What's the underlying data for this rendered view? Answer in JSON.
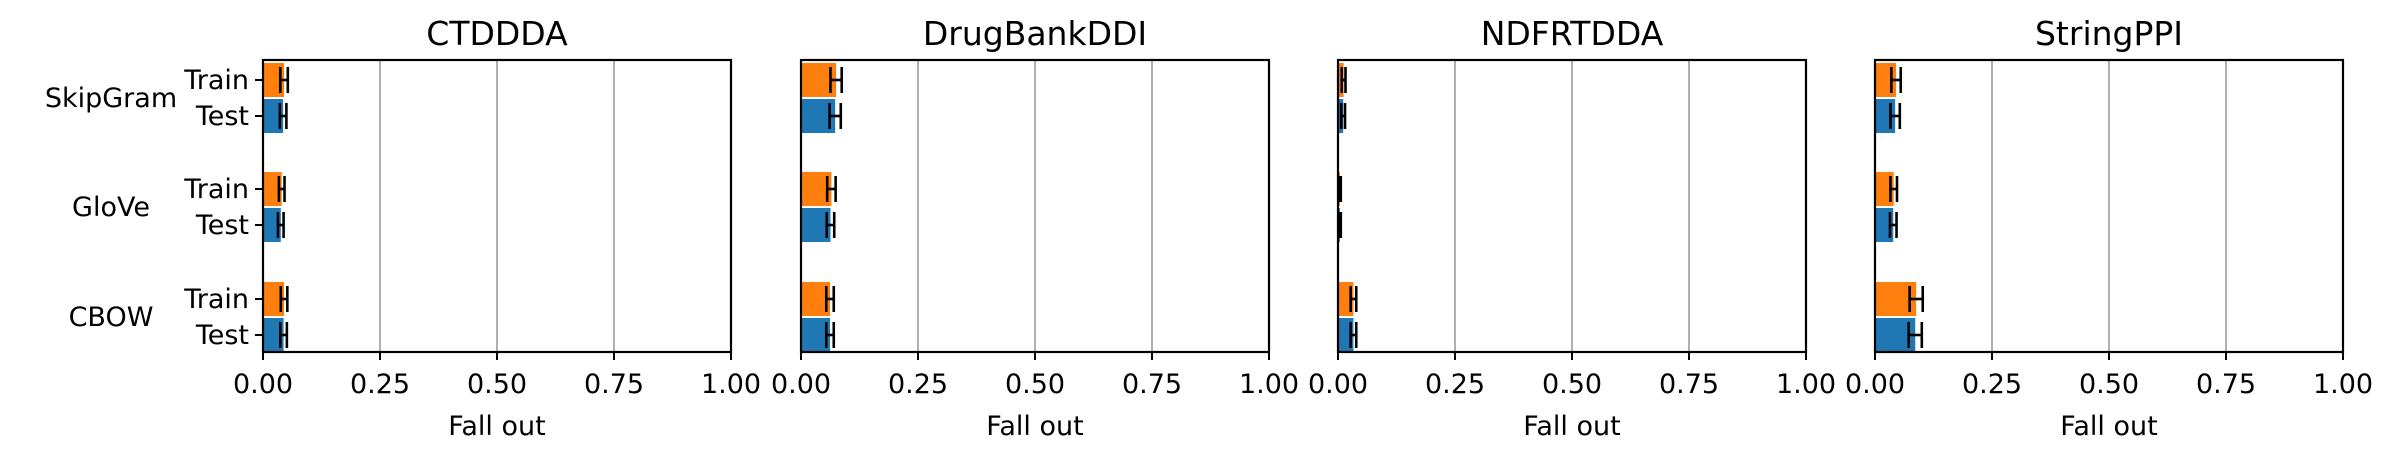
{
  "chart_data": [
    {
      "type": "bar",
      "orientation": "horizontal",
      "title": "CTDDDA",
      "xlabel": "Fall out",
      "xlim": [
        0,
        1
      ],
      "xticks": [
        "0.00",
        "0.25",
        "0.50",
        "0.75",
        "1.00"
      ],
      "categories": [
        "SkipGram",
        "GloVe",
        "CBOW"
      ],
      "sublabels": [
        "Train",
        "Test"
      ],
      "grid": "vertical",
      "series": [
        {
          "color": "#ff7f0e",
          "values": [
            0.045,
            0.04,
            0.045
          ],
          "errors": [
            0.008,
            0.006,
            0.007
          ]
        },
        {
          "color": "#1f77b4",
          "values": [
            0.043,
            0.038,
            0.044
          ],
          "errors": [
            0.007,
            0.006,
            0.007
          ]
        }
      ]
    },
    {
      "type": "bar",
      "orientation": "horizontal",
      "title": "DrugBankDDI",
      "xlabel": "Fall out",
      "xlim": [
        0,
        1
      ],
      "xticks": [
        "0.00",
        "0.25",
        "0.50",
        "0.75",
        "1.00"
      ],
      "categories": [
        "SkipGram",
        "GloVe",
        "CBOW"
      ],
      "sublabels": [
        "Train",
        "Test"
      ],
      "grid": "vertical",
      "series": [
        {
          "color": "#ff7f0e",
          "values": [
            0.075,
            0.065,
            0.062
          ],
          "errors": [
            0.012,
            0.009,
            0.008
          ]
        },
        {
          "color": "#1f77b4",
          "values": [
            0.073,
            0.063,
            0.062
          ],
          "errors": [
            0.012,
            0.008,
            0.008
          ]
        }
      ]
    },
    {
      "type": "bar",
      "orientation": "horizontal",
      "title": "NDFRTDDA",
      "xlabel": "Fall out",
      "xlim": [
        0,
        1
      ],
      "xticks": [
        "0.00",
        "0.25",
        "0.50",
        "0.75",
        "1.00"
      ],
      "categories": [
        "SkipGram",
        "GloVe",
        "CBOW"
      ],
      "sublabels": [
        "Train",
        "Test"
      ],
      "grid": "vertical",
      "series": [
        {
          "color": "#ff7f0e",
          "values": [
            0.012,
            0.004,
            0.033
          ],
          "errors": [
            0.004,
            0.002,
            0.006
          ]
        },
        {
          "color": "#1f77b4",
          "values": [
            0.011,
            0.004,
            0.033
          ],
          "errors": [
            0.004,
            0.002,
            0.006
          ]
        }
      ]
    },
    {
      "type": "bar",
      "orientation": "horizontal",
      "title": "StringPPI",
      "xlabel": "Fall out",
      "xlim": [
        0,
        1
      ],
      "xticks": [
        "0.00",
        "0.25",
        "0.50",
        "0.75",
        "1.00"
      ],
      "categories": [
        "SkipGram",
        "GloVe",
        "CBOW"
      ],
      "sublabels": [
        "Train",
        "Test"
      ],
      "grid": "vertical",
      "series": [
        {
          "color": "#ff7f0e",
          "values": [
            0.045,
            0.04,
            0.088
          ],
          "errors": [
            0.01,
            0.007,
            0.014
          ]
        },
        {
          "color": "#1f77b4",
          "values": [
            0.043,
            0.039,
            0.086
          ],
          "errors": [
            0.01,
            0.007,
            0.014
          ]
        }
      ]
    }
  ]
}
